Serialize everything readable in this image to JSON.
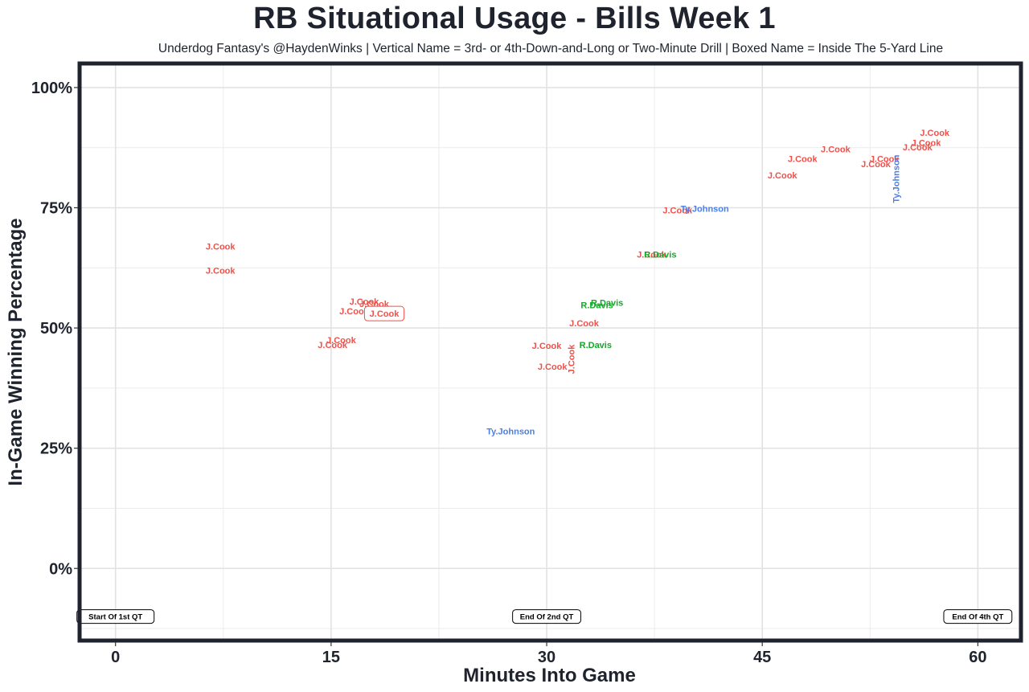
{
  "title": "RB Situational Usage - Bills Week 1",
  "subtitle": "Underdog Fantasy's @HaydenWinks | Vertical Name = 3rd- or 4th-Down-and-Long or Two-Minute Drill | Boxed Name = Inside The 5-Yard Line",
  "chart_data": {
    "type": "scatter",
    "title": "RB Situational Usage - Bills Week 1",
    "subtitle": "Underdog Fantasy's @HaydenWinks | Vertical Name = 3rd- or 4th-Down-and-Long or Two-Minute Drill | Boxed Name = Inside The 5-Yard Line",
    "xlabel": "Minutes Into Game",
    "ylabel": "In-Game Winning Percentage",
    "xlim": [
      -2.5,
      63
    ],
    "ylim": [
      -15,
      105
    ],
    "x_ticks": [
      0,
      15,
      30,
      45,
      60
    ],
    "x_tick_labels": [
      "0",
      "15",
      "30",
      "45",
      "60"
    ],
    "y_ticks": [
      0,
      25,
      50,
      75,
      100
    ],
    "y_tick_labels": [
      "0%",
      "25%",
      "50%",
      "75%",
      "100%"
    ],
    "grid": true,
    "colors": {
      "J.Cook": "#f0504a",
      "Ty.Johnson": "#4a7fe6",
      "R.Davis": "#14a828"
    },
    "quarter_markers": [
      {
        "x": 0,
        "y": -10,
        "label": "Start Of 1st QT"
      },
      {
        "x": 30,
        "y": -10,
        "label": "End Of 2nd QT"
      },
      {
        "x": 60,
        "y": -10,
        "label": "End Of 4th QT"
      }
    ],
    "points": [
      {
        "player": "J.Cook",
        "x": 7.3,
        "y": 67,
        "vertical": false,
        "boxed": false
      },
      {
        "player": "J.Cook",
        "x": 7.3,
        "y": 62,
        "vertical": false,
        "boxed": false
      },
      {
        "player": "J.Cook",
        "x": 17.3,
        "y": 55.5,
        "vertical": false,
        "boxed": false
      },
      {
        "player": "J.Cook",
        "x": 18.0,
        "y": 55.0,
        "vertical": false,
        "boxed": false
      },
      {
        "player": "J.Cook",
        "x": 16.6,
        "y": 53.5,
        "vertical": false,
        "boxed": false
      },
      {
        "player": "J.Cook",
        "x": 18.7,
        "y": 53.0,
        "vertical": false,
        "boxed": true
      },
      {
        "player": "J.Cook",
        "x": 15.7,
        "y": 47.5,
        "vertical": false,
        "boxed": false
      },
      {
        "player": "J.Cook",
        "x": 15.1,
        "y": 46.5,
        "vertical": false,
        "boxed": false
      },
      {
        "player": "J.Cook",
        "x": 30.0,
        "y": 46.3,
        "vertical": false,
        "boxed": false
      },
      {
        "player": "J.Cook",
        "x": 30.4,
        "y": 42.0,
        "vertical": false,
        "boxed": false
      },
      {
        "player": "J.Cook",
        "x": 31.7,
        "y": 43.5,
        "vertical": true,
        "boxed": false
      },
      {
        "player": "J.Cook",
        "x": 32.6,
        "y": 51.0,
        "vertical": false,
        "boxed": false
      },
      {
        "player": "J.Cook",
        "x": 37.3,
        "y": 65.3,
        "vertical": false,
        "boxed": false
      },
      {
        "player": "J.Cook",
        "x": 39.1,
        "y": 74.5,
        "vertical": false,
        "boxed": false
      },
      {
        "player": "J.Cook",
        "x": 46.4,
        "y": 81.8,
        "vertical": false,
        "boxed": false
      },
      {
        "player": "J.Cook",
        "x": 47.8,
        "y": 85.2,
        "vertical": false,
        "boxed": false
      },
      {
        "player": "J.Cook",
        "x": 50.1,
        "y": 87.2,
        "vertical": false,
        "boxed": false
      },
      {
        "player": "J.Cook",
        "x": 52.9,
        "y": 84.1,
        "vertical": false,
        "boxed": false
      },
      {
        "player": "J.Cook",
        "x": 53.5,
        "y": 85.2,
        "vertical": false,
        "boxed": false
      },
      {
        "player": "J.Cook",
        "x": 55.8,
        "y": 87.6,
        "vertical": false,
        "boxed": false
      },
      {
        "player": "J.Cook",
        "x": 56.4,
        "y": 88.5,
        "vertical": false,
        "boxed": false
      },
      {
        "player": "J.Cook",
        "x": 57.0,
        "y": 90.6,
        "vertical": false,
        "boxed": false
      },
      {
        "player": "Ty.Johnson",
        "x": 27.5,
        "y": 28.5,
        "vertical": false,
        "boxed": false
      },
      {
        "player": "Ty.Johnson",
        "x": 41.0,
        "y": 74.8,
        "vertical": false,
        "boxed": false
      },
      {
        "player": "Ty.Johnson",
        "x": 54.3,
        "y": 81.0,
        "vertical": true,
        "boxed": false
      },
      {
        "player": "R.Davis",
        "x": 37.9,
        "y": 65.3,
        "vertical": false,
        "boxed": false
      },
      {
        "player": "R.Davis",
        "x": 34.2,
        "y": 55.3,
        "vertical": false,
        "boxed": false
      },
      {
        "player": "R.Davis",
        "x": 33.5,
        "y": 54.8,
        "vertical": false,
        "boxed": false
      },
      {
        "player": "R.Davis",
        "x": 33.4,
        "y": 46.5,
        "vertical": false,
        "boxed": false
      }
    ]
  }
}
